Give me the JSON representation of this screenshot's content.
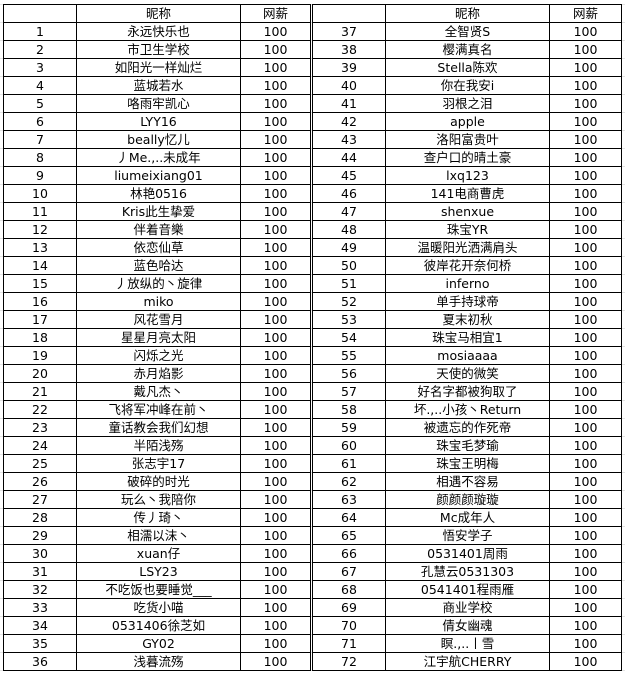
{
  "header": {
    "index": "",
    "name": "昵称",
    "salary": "网薪"
  },
  "left_rows": [
    {
      "no": "1",
      "name": "永远快乐也",
      "salary": "100"
    },
    {
      "no": "2",
      "name": "市卫生学校",
      "salary": "100"
    },
    {
      "no": "3",
      "name": "如阳光一样灿烂",
      "salary": "100"
    },
    {
      "no": "4",
      "name": "蓝城若水",
      "salary": "100"
    },
    {
      "no": "5",
      "name": "咯雨牢凯心",
      "salary": "100"
    },
    {
      "no": "6",
      "name": "LYY16",
      "salary": "100"
    },
    {
      "no": "7",
      "name": "beally忆儿",
      "salary": "100"
    },
    {
      "no": "8",
      "name": "丿Me.,..未成年",
      "salary": "100"
    },
    {
      "no": "9",
      "name": "liumeixiang01",
      "salary": "100"
    },
    {
      "no": "10",
      "name": "林艳0516",
      "salary": "100"
    },
    {
      "no": "11",
      "name": "Kris此生挚爱",
      "salary": "100"
    },
    {
      "no": "12",
      "name": "伴着音樂",
      "salary": "100"
    },
    {
      "no": "13",
      "name": "依恋仙草",
      "salary": "100"
    },
    {
      "no": "14",
      "name": "蓝色哈达",
      "salary": "100"
    },
    {
      "no": "15",
      "name": "丿放纵的丶旋律",
      "salary": "100"
    },
    {
      "no": "16",
      "name": "miko",
      "salary": "100"
    },
    {
      "no": "17",
      "name": "风花雪月",
      "salary": "100"
    },
    {
      "no": "18",
      "name": "星星月亮太阳",
      "salary": "100"
    },
    {
      "no": "19",
      "name": "闪烁之光",
      "salary": "100"
    },
    {
      "no": "20",
      "name": "赤月焰影",
      "salary": "100"
    },
    {
      "no": "21",
      "name": "戴凡杰丶",
      "salary": "100"
    },
    {
      "no": "22",
      "name": "飞将军冲峰在前丶",
      "salary": "100"
    },
    {
      "no": "23",
      "name": "童话教会我们幻想",
      "salary": "100"
    },
    {
      "no": "24",
      "name": "半陌浅殇",
      "salary": "100"
    },
    {
      "no": "25",
      "name": "张志宇17",
      "salary": "100"
    },
    {
      "no": "26",
      "name": "破碎的时光",
      "salary": "100"
    },
    {
      "no": "27",
      "name": "玩么丶我陪你",
      "salary": "100"
    },
    {
      "no": "28",
      "name": "传丿琦丶",
      "salary": "100"
    },
    {
      "no": "29",
      "name": "相濡以沫丶",
      "salary": "100"
    },
    {
      "no": "30",
      "name": "xuan仔",
      "salary": "100"
    },
    {
      "no": "31",
      "name": "LSY23",
      "salary": "100"
    },
    {
      "no": "32",
      "name": "不吃饭也要睡觉___",
      "salary": "100"
    },
    {
      "no": "33",
      "name": "吃货小喵",
      "salary": "100"
    },
    {
      "no": "34",
      "name": "0531406徐芝如",
      "salary": "100"
    },
    {
      "no": "35",
      "name": "GY02",
      "salary": "100"
    },
    {
      "no": "36",
      "name": "浅暮流殇",
      "salary": "100"
    }
  ],
  "right_rows": [
    {
      "no": "37",
      "name": "全智贤S",
      "salary": "100"
    },
    {
      "no": "38",
      "name": "樱满真名",
      "salary": "100"
    },
    {
      "no": "39",
      "name": "Stella陈欢",
      "salary": "100"
    },
    {
      "no": "40",
      "name": "你在我安i",
      "salary": "100"
    },
    {
      "no": "41",
      "name": "羽根之泪",
      "salary": "100"
    },
    {
      "no": "42",
      "name": "apple",
      "salary": "100"
    },
    {
      "no": "43",
      "name": "洛阳富贵叶",
      "salary": "100"
    },
    {
      "no": "44",
      "name": "查户口的晴土豪",
      "salary": "100"
    },
    {
      "no": "45",
      "name": "lxq123",
      "salary": "100"
    },
    {
      "no": "46",
      "name": "141电商曹虎",
      "salary": "100"
    },
    {
      "no": "47",
      "name": "shenxue",
      "salary": "100"
    },
    {
      "no": "48",
      "name": "珠宝YR",
      "salary": "100"
    },
    {
      "no": "49",
      "name": "温暖阳光洒满肩头",
      "salary": "100"
    },
    {
      "no": "50",
      "name": "彼岸花开奈何桥",
      "salary": "100"
    },
    {
      "no": "51",
      "name": "inferno",
      "salary": "100"
    },
    {
      "no": "52",
      "name": "单手持球帝",
      "salary": "100"
    },
    {
      "no": "53",
      "name": "夏末初秋",
      "salary": "100"
    },
    {
      "no": "54",
      "name": "珠宝马相宜1",
      "salary": "100"
    },
    {
      "no": "55",
      "name": "mosiaaaa",
      "salary": "100"
    },
    {
      "no": "56",
      "name": "天使的微笑",
      "salary": "100"
    },
    {
      "no": "57",
      "name": "好名字都被狗取了",
      "salary": "100"
    },
    {
      "no": "58",
      "name": "坏.,..小孩丶Return",
      "salary": "100"
    },
    {
      "no": "59",
      "name": "被遗忘的作死帝",
      "salary": "100"
    },
    {
      "no": "60",
      "name": "珠宝毛梦瑜",
      "salary": "100"
    },
    {
      "no": "61",
      "name": "珠宝王明梅",
      "salary": "100"
    },
    {
      "no": "62",
      "name": "相遇不容易",
      "salary": "100"
    },
    {
      "no": "63",
      "name": "颜颜颜璇璇",
      "salary": "100"
    },
    {
      "no": "64",
      "name": "Mc成年人",
      "salary": "100"
    },
    {
      "no": "65",
      "name": "悟安学子",
      "salary": "100"
    },
    {
      "no": "66",
      "name": "0531401周雨",
      "salary": "100"
    },
    {
      "no": "67",
      "name": "孔慧云0531303",
      "salary": "100"
    },
    {
      "no": "68",
      "name": "0541401程雨雁",
      "salary": "100"
    },
    {
      "no": "69",
      "name": "商业学校",
      "salary": "100"
    },
    {
      "no": "70",
      "name": "倩女幽魂",
      "salary": "100"
    },
    {
      "no": "71",
      "name": "瞑.,..丨雪",
      "salary": "100"
    },
    {
      "no": "72",
      "name": "江宇航CHERRY",
      "salary": "100"
    }
  ]
}
